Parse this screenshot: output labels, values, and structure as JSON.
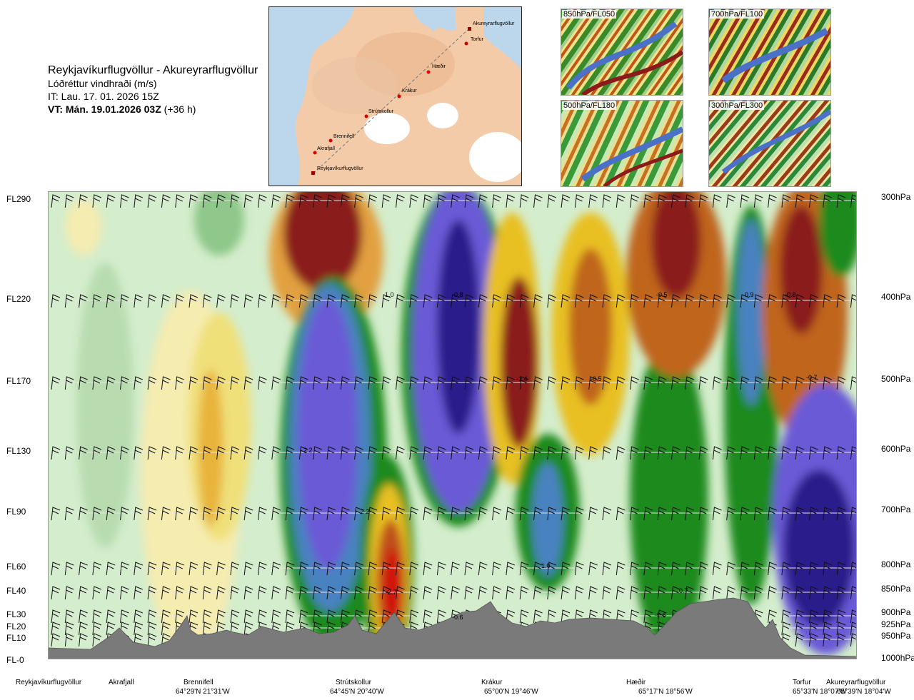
{
  "header": {
    "route": "Reykjavíkurflugvöllur - Akureyrarflugvöllur",
    "parameter": "Lóðréttur vindhraði (m/s)",
    "issue_time": "IT: Lau. 17. 01. 2026 15Z",
    "valid_time_bold": "VT: Mán. 19.01.2026 03Z",
    "valid_time_offset": "(+36 h)"
  },
  "map": {
    "points": [
      {
        "label": "Akureyrarflugvöllur"
      },
      {
        "label": "Torfur"
      },
      {
        "label": "Hæðir"
      },
      {
        "label": "Krákur"
      },
      {
        "label": "Strútskollur"
      },
      {
        "label": "Brennifell"
      },
      {
        "label": "Akrafjall"
      },
      {
        "label": "Reykjavíkurflugvöllur"
      }
    ]
  },
  "thumbnails": [
    {
      "label": "850hPa/FL050"
    },
    {
      "label": "700hPa/FL100"
    },
    {
      "label": "500hPa/FL180"
    },
    {
      "label": "300hPa/FL300"
    }
  ],
  "colors": {
    "strong_down": "#8b1a1a",
    "down": "#c8651a",
    "weak_down": "#e8c020",
    "weak_up": "#9fd19a",
    "up": "#1a8a1a",
    "strong_up": "#6a5ad6",
    "very_strong_up": "#2a1a8a",
    "terrain": "#7a7a7a"
  },
  "chart_data": {
    "type": "heatmap",
    "flight_levels": [
      "FL290",
      "FL220",
      "FL170",
      "FL130",
      "FL90",
      "FL60",
      "FL40",
      "FL30",
      "FL20",
      "FL10",
      "FL-0"
    ],
    "pressure_levels": [
      "300hPa",
      "400hPa",
      "500hPa",
      "600hPa",
      "700hPa",
      "800hPa",
      "850hPa",
      "900hPa",
      "925hPa",
      "950hPa",
      "1000hPa"
    ],
    "locations": [
      {
        "name": "Reykjavíkurflugvöllur",
        "coord": ""
      },
      {
        "name": "Akrafjall",
        "coord": ""
      },
      {
        "name": "Brennifell",
        "coord": "64°29'N 21°31'W"
      },
      {
        "name": "Strútskollur",
        "coord": "64°45'N 20°40'W"
      },
      {
        "name": "Krákur",
        "coord": "65°00'N 19°46'W"
      },
      {
        "name": "Hæðir",
        "coord": "65°17'N 18°56'W"
      },
      {
        "name": "Torfur",
        "coord": "65°33'N 18°07'W"
      },
      {
        "name": "Akureyrarflugvöllur",
        "coord": "65°39'N 18°04'W"
      }
    ],
    "value_labels": [
      "1.0",
      "-0.8",
      "-0.5",
      "0.9",
      "-0.8",
      "-1.4",
      "-0.5",
      "-0.7",
      "2.2",
      "2.2",
      "1.0",
      "0.7",
      "-2.7",
      "-0.6",
      "-0.6"
    ],
    "legend": "none"
  }
}
